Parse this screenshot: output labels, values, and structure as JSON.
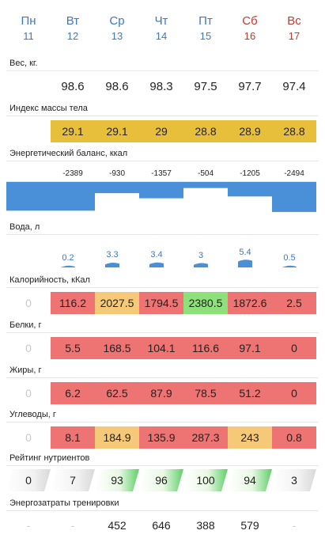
{
  "days": [
    {
      "name": "Пн",
      "date": "11",
      "weekend": false
    },
    {
      "name": "Вт",
      "date": "12",
      "weekend": false
    },
    {
      "name": "Ср",
      "date": "13",
      "weekend": false
    },
    {
      "name": "Чт",
      "date": "14",
      "weekend": false
    },
    {
      "name": "Пт",
      "date": "15",
      "weekend": false
    },
    {
      "name": "Сб",
      "date": "16",
      "weekend": true
    },
    {
      "name": "Вс",
      "date": "17",
      "weekend": true
    }
  ],
  "colors": {
    "weekday": "#3a78c8",
    "weekend": "#c0392b",
    "bar_blue": "#4a90d9",
    "bmi": "#e8bf3a",
    "bad": "#ee7373",
    "mid": "#f6c978",
    "good": "#8ee07a"
  },
  "weight": {
    "label": "Вес, кг.",
    "values": [
      "",
      "98.6",
      "98.6",
      "98.3",
      "97.5",
      "97.7",
      "97.4"
    ]
  },
  "bmi": {
    "label": "Индекс массы тела",
    "values": [
      "",
      "29.1",
      "29.1",
      "29",
      "28.8",
      "28.9",
      "28.8"
    ]
  },
  "energy": {
    "label": "Энергетический баланс, ккал",
    "values": [
      -2389,
      -930,
      -1357,
      -504,
      -1205,
      -2494
    ]
  },
  "water": {
    "label": "Вода, л",
    "values": [
      0.2,
      3.3,
      3.4,
      3,
      5.4,
      0.5
    ],
    "texts": [
      "0.2",
      "3.3",
      "3.4",
      "3",
      "5.4",
      "0.5"
    ]
  },
  "calories": {
    "label": "Калорийность, кКал",
    "values": [
      "0",
      "116.2",
      "2027.5",
      "1794.5",
      "2380.5",
      "1872.6",
      "2.5"
    ],
    "status": [
      "none",
      "bad",
      "mid",
      "bad",
      "good",
      "bad",
      "bad"
    ]
  },
  "protein": {
    "label": "Белки, г",
    "values": [
      "0",
      "5.5",
      "168.5",
      "104.1",
      "116.6",
      "97.1",
      "0"
    ],
    "status": [
      "none",
      "bad",
      "bad",
      "bad",
      "bad",
      "bad",
      "bad"
    ]
  },
  "fat": {
    "label": "Жиры, г",
    "values": [
      "0",
      "6.2",
      "62.5",
      "87.9",
      "78.5",
      "51.2",
      "0"
    ],
    "status": [
      "none",
      "bad",
      "bad",
      "bad",
      "bad",
      "bad",
      "bad"
    ]
  },
  "carbs": {
    "label": "Углеводы, г",
    "values": [
      "0",
      "8.1",
      "184.9",
      "135.9",
      "287.3",
      "243",
      "0.8"
    ],
    "status": [
      "none",
      "bad",
      "mid",
      "bad",
      "bad",
      "mid",
      "bad"
    ]
  },
  "rating": {
    "label": "Рейтинг нутриентов",
    "values": [
      "0",
      "7",
      "93",
      "96",
      "100",
      "94",
      "3"
    ],
    "status": [
      "low",
      "low",
      "good",
      "good",
      "good",
      "good",
      "low"
    ]
  },
  "training": {
    "label": "Энергозатраты тренировки",
    "values": [
      "-",
      "-",
      "452",
      "646",
      "388",
      "579",
      "-"
    ]
  }
}
